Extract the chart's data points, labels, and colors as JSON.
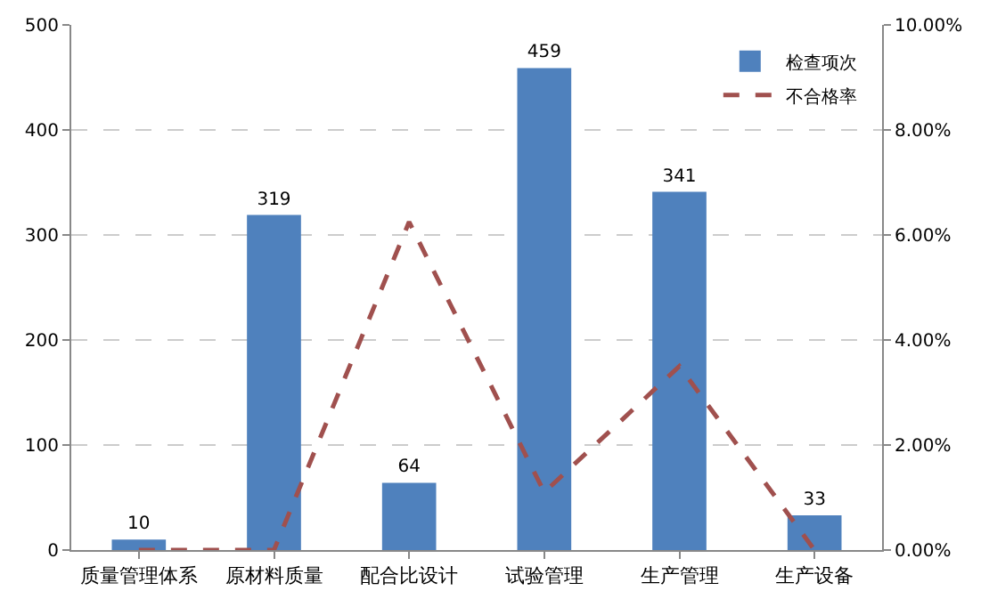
{
  "chart_data": {
    "type": "bar",
    "categories": [
      "质量管理体系",
      "原材料质量",
      "配合比设计",
      "试验管理",
      "生产管理",
      "生产设备"
    ],
    "series": [
      {
        "name": "检查项次",
        "color": "#4f81bd",
        "values": [
          10,
          319,
          64,
          459,
          341,
          33
        ],
        "data_labels": true
      },
      {
        "name": "不合格率",
        "type": "line",
        "axis": "y2",
        "color": "#a0504e",
        "line_style": "dashed",
        "marker": "none",
        "values": [
          0,
          0,
          6.25,
          1.1,
          3.5,
          0
        ]
      }
    ],
    "ylim": [
      0,
      500
    ],
    "yticks": [
      0,
      100,
      200,
      300,
      400,
      500
    ],
    "y2lim": [
      0,
      10
    ],
    "y2ticks": [
      {
        "value": 0,
        "label": "0.00%"
      },
      {
        "value": 2,
        "label": "2.00%"
      },
      {
        "value": 4,
        "label": "4.00%"
      },
      {
        "value": 6,
        "label": "6.00%"
      },
      {
        "value": 8,
        "label": "8.00%"
      },
      {
        "value": 10,
        "label": "10.00%"
      }
    ],
    "grid": "y",
    "legend": "top right"
  }
}
